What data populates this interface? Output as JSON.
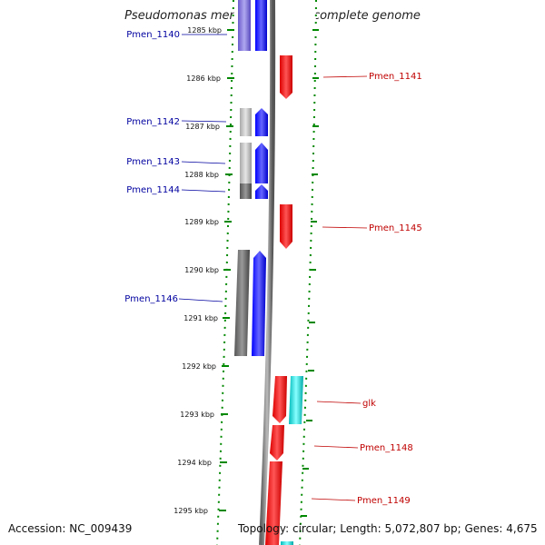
{
  "title": "Pseudomonas mendocina ymp, complete genome",
  "footer": {
    "accession": "Accession: NC_009439",
    "summary": "Topology: circular; Length: 5,072,807 bp; Genes: 4,675"
  },
  "colors": {
    "reverse_cds": "#0000ff",
    "forward_cds": "#ff0000",
    "rna": "#00cccc",
    "tick": "#008800",
    "left_label": "#0000a0",
    "right_label": "#c00000"
  },
  "kbp_ticks": [
    {
      "label": "1285 kbp"
    },
    {
      "label": "1286 kbp"
    },
    {
      "label": "1287 kbp"
    },
    {
      "label": "1288 kbp"
    },
    {
      "label": "1289 kbp"
    },
    {
      "label": "1290 kbp"
    },
    {
      "label": "1291 kbp"
    },
    {
      "label": "1292 kbp"
    },
    {
      "label": "1293 kbp"
    },
    {
      "label": "1294 kbp"
    },
    {
      "label": "1295 kbp"
    }
  ],
  "genes_left": [
    {
      "name": "Pmen_1140"
    },
    {
      "name": "Pmen_1142"
    },
    {
      "name": "Pmen_1143"
    },
    {
      "name": "Pmen_1144"
    },
    {
      "name": "Pmen_1146"
    }
  ],
  "genes_right": [
    {
      "name": "Pmen_1141"
    },
    {
      "name": "Pmen_1145"
    },
    {
      "name": "glk"
    },
    {
      "name": "Pmen_1148"
    },
    {
      "name": "Pmen_1149"
    }
  ]
}
